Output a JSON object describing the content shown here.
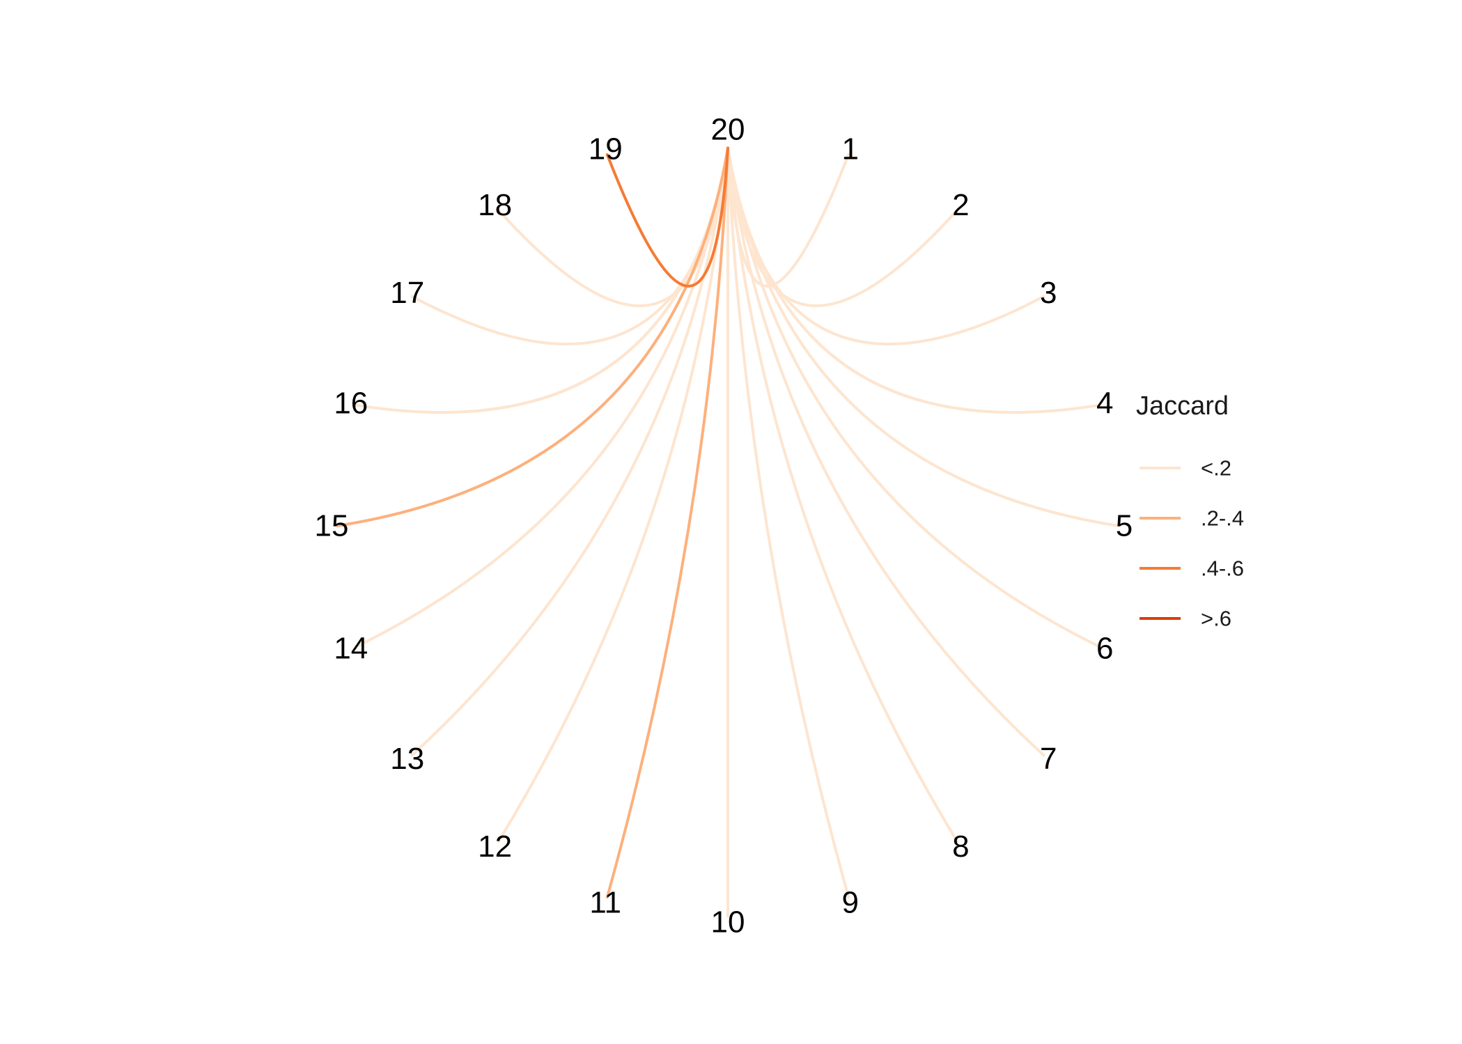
{
  "nodes": [
    "1",
    "2",
    "3",
    "4",
    "5",
    "6",
    "7",
    "8",
    "9",
    "10",
    "11",
    "12",
    "13",
    "14",
    "15",
    "16",
    "17",
    "18",
    "19",
    "20"
  ],
  "hub": "20",
  "edges": [
    {
      "from": "20",
      "to": "1",
      "jaccard_bin": "<.2"
    },
    {
      "from": "20",
      "to": "2",
      "jaccard_bin": "<.2"
    },
    {
      "from": "20",
      "to": "3",
      "jaccard_bin": "<.2"
    },
    {
      "from": "20",
      "to": "4",
      "jaccard_bin": "<.2"
    },
    {
      "from": "20",
      "to": "5",
      "jaccard_bin": "<.2"
    },
    {
      "from": "20",
      "to": "6",
      "jaccard_bin": "<.2"
    },
    {
      "from": "20",
      "to": "7",
      "jaccard_bin": "<.2"
    },
    {
      "from": "20",
      "to": "8",
      "jaccard_bin": "<.2"
    },
    {
      "from": "20",
      "to": "9",
      "jaccard_bin": "<.2"
    },
    {
      "from": "20",
      "to": "10",
      "jaccard_bin": "<.2"
    },
    {
      "from": "20",
      "to": "11",
      "jaccard_bin": ".2-.4"
    },
    {
      "from": "20",
      "to": "12",
      "jaccard_bin": "<.2"
    },
    {
      "from": "20",
      "to": "13",
      "jaccard_bin": "<.2"
    },
    {
      "from": "20",
      "to": "14",
      "jaccard_bin": "<.2"
    },
    {
      "from": "20",
      "to": "15",
      "jaccard_bin": ".2-.4"
    },
    {
      "from": "20",
      "to": "16",
      "jaccard_bin": "<.2"
    },
    {
      "from": "20",
      "to": "17",
      "jaccard_bin": "<.2"
    },
    {
      "from": "20",
      "to": "18",
      "jaccard_bin": "<.2"
    },
    {
      "from": "20",
      "to": "19",
      "jaccard_bin": ".4-.6"
    }
  ],
  "legend": {
    "title": "Jaccard",
    "items": [
      {
        "label": "<.2",
        "color": "#fde5d0"
      },
      {
        "label": ".2-.4",
        "color": "#fdb07c"
      },
      {
        "label": ".4-.6",
        "color": "#f57b35"
      },
      {
        "label": ">.6",
        "color": "#d73f06"
      }
    ]
  }
}
